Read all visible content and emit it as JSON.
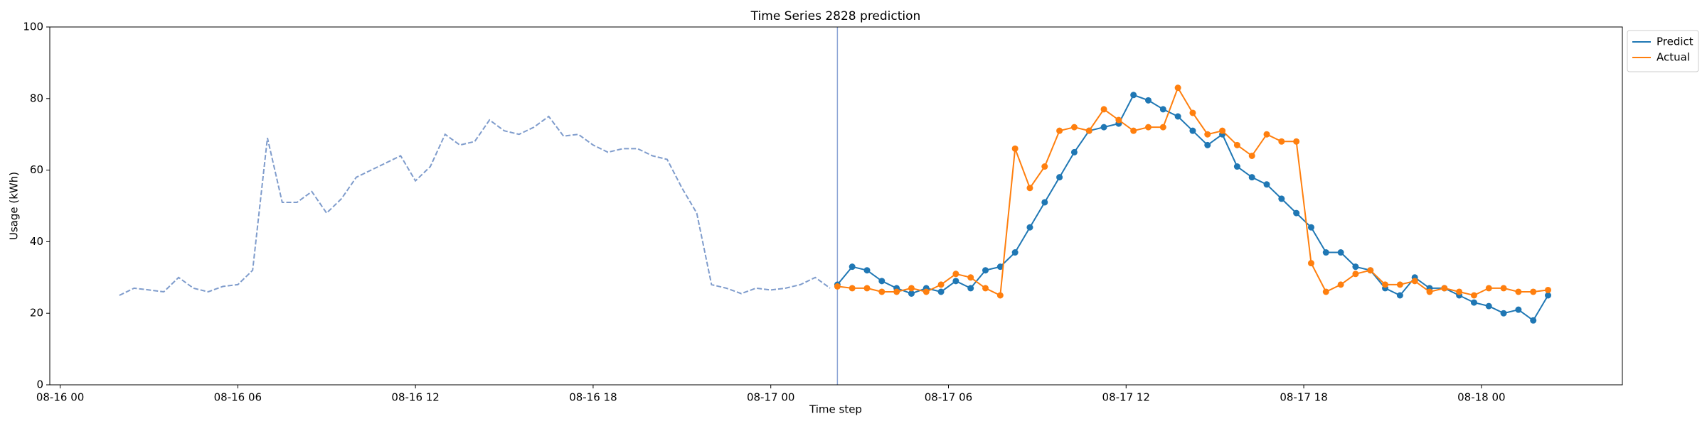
{
  "chart_data": {
    "type": "line",
    "title": "Time Series 2828 prediction",
    "xlabel": "Time step",
    "ylabel": "Usage (kWh)",
    "xlim": [
      -0.35,
      52.76
    ],
    "xticks": [
      {
        "value": 0,
        "label": "08-16 00"
      },
      {
        "value": 6,
        "label": "08-16 06"
      },
      {
        "value": 12,
        "label": "08-16 12"
      },
      {
        "value": 18,
        "label": "08-16 18"
      },
      {
        "value": 24,
        "label": "08-17 00"
      },
      {
        "value": 30,
        "label": "08-17 06"
      },
      {
        "value": 36,
        "label": "08-17 12"
      },
      {
        "value": 42,
        "label": "08-17 18"
      },
      {
        "value": 48,
        "label": "08-18 00"
      }
    ],
    "ylim": [
      0,
      100
    ],
    "yticks": [
      0,
      20,
      40,
      60,
      80,
      100
    ],
    "legend": "upper right outside",
    "forecast_start": 26.25,
    "forecast_start_color": "#8ea6d6",
    "history": {
      "color": "#7f9ccc",
      "dashed": true,
      "x": [
        2,
        2.5,
        3,
        3.5,
        4,
        4.5,
        5,
        5.5,
        6,
        6.5,
        7,
        7.5,
        8,
        8.5,
        9,
        9.5,
        10,
        10.5,
        11,
        11.5,
        12,
        12.5,
        13,
        13.5,
        14,
        14.5,
        15,
        15.5,
        16,
        16.5,
        17,
        17.5,
        18,
        18.5,
        19,
        19.5,
        20,
        20.5,
        21,
        21.5,
        22,
        22.5,
        23,
        23.5,
        24,
        24.5,
        25,
        25.5,
        26
      ],
      "values": [
        25,
        27,
        26.5,
        26,
        30,
        27,
        26,
        27.5,
        28,
        32,
        69,
        51,
        51,
        54,
        48,
        52,
        58,
        60,
        62,
        64,
        57,
        61,
        70,
        67,
        68,
        74,
        71,
        70,
        72,
        75,
        69.5,
        70,
        67,
        65,
        66,
        66,
        64,
        63,
        55,
        48,
        28,
        27,
        25.5,
        27,
        26.5,
        27,
        28,
        30,
        27
      ]
    },
    "series": [
      {
        "name": "Predict",
        "color": "#1f77b4",
        "x": [
          26.25,
          26.75,
          27.25,
          27.75,
          28.25,
          28.75,
          29.25,
          29.75,
          30.25,
          30.75,
          31.25,
          31.75,
          32.25,
          32.75,
          33.25,
          33.75,
          34.25,
          34.75,
          35.25,
          35.75,
          36.25,
          36.75,
          37.25,
          37.75,
          38.25,
          38.75,
          39.25,
          39.75,
          40.25,
          40.75,
          41.25,
          41.75,
          42.25,
          42.75,
          43.25,
          43.75,
          44.25,
          44.75,
          45.25,
          45.75,
          46.25,
          46.75,
          47.25,
          47.75,
          48.25,
          48.75,
          49.25,
          49.75,
          50.25
        ],
        "values": [
          28,
          33,
          32,
          29,
          27,
          25.5,
          27,
          26,
          29,
          27,
          32,
          33,
          37,
          44,
          51,
          58,
          65,
          71,
          72,
          73,
          81,
          79.5,
          77,
          75,
          71,
          67,
          70,
          61,
          58,
          56,
          52,
          48,
          44,
          37,
          37,
          33,
          32,
          27,
          25,
          30,
          27,
          27,
          25,
          23,
          22,
          20,
          21,
          18,
          25
        ]
      },
      {
        "name": "Actual",
        "color": "#ff7f0e",
        "x": [
          26.25,
          26.75,
          27.25,
          27.75,
          28.25,
          28.75,
          29.25,
          29.75,
          30.25,
          30.75,
          31.25,
          31.75,
          32.25,
          32.75,
          33.25,
          33.75,
          34.25,
          34.75,
          35.25,
          35.75,
          36.25,
          36.75,
          37.25,
          37.75,
          38.25,
          38.75,
          39.25,
          39.75,
          40.25,
          40.75,
          41.25,
          41.75,
          42.25,
          42.75,
          43.25,
          43.75,
          44.25,
          44.75,
          45.25,
          45.75,
          46.25,
          46.75,
          47.25,
          47.75,
          48.25,
          48.75,
          49.25,
          49.75,
          50.25
        ],
        "values": [
          27.5,
          27,
          27,
          26,
          26,
          27,
          26,
          28,
          31,
          30,
          27,
          25,
          66,
          55,
          61,
          71,
          72,
          71,
          77,
          74,
          71,
          72,
          72,
          83,
          76,
          70,
          71,
          67,
          64,
          70,
          68,
          68,
          34,
          26,
          28,
          31,
          32,
          28,
          28,
          29,
          26,
          27,
          26,
          25,
          27,
          27,
          26,
          26,
          26.5
        ]
      }
    ]
  }
}
